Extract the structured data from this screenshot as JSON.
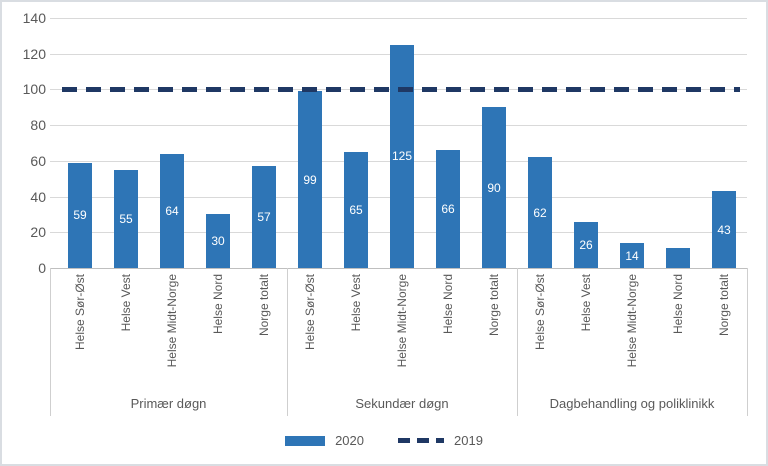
{
  "chart_data": {
    "type": "bar",
    "groups": [
      "Primær døgn",
      "Sekundær døgn",
      "Dagbehandling og poliklinikk"
    ],
    "categories": [
      "Helse Sør-Øst",
      "Helse Vest",
      "Helse Midt-Norge",
      "Helse Nord",
      "Norge totalt"
    ],
    "series": [
      {
        "name": "2020",
        "type": "bar",
        "color": "#2e75b6",
        "values_by_group": [
          [
            59,
            55,
            64,
            30,
            57
          ],
          [
            99,
            65,
            125,
            66,
            90
          ],
          [
            62,
            26,
            14,
            11,
            43
          ]
        ],
        "data_labels_by_group": [
          [
            "59",
            "55",
            "64",
            "30",
            "57"
          ],
          [
            "99",
            "65",
            "125",
            "66",
            "90"
          ],
          [
            "62",
            "26",
            "14",
            null,
            "43"
          ]
        ]
      },
      {
        "name": "2019",
        "type": "dashed-reference-line",
        "color": "#1f3864",
        "value": 100
      }
    ],
    "ylim": [
      0,
      140
    ],
    "yticks": [
      0,
      20,
      40,
      60,
      80,
      100,
      120,
      140
    ],
    "grid": true,
    "legend_position": "bottom",
    "data_label_color": "#ffffff"
  }
}
